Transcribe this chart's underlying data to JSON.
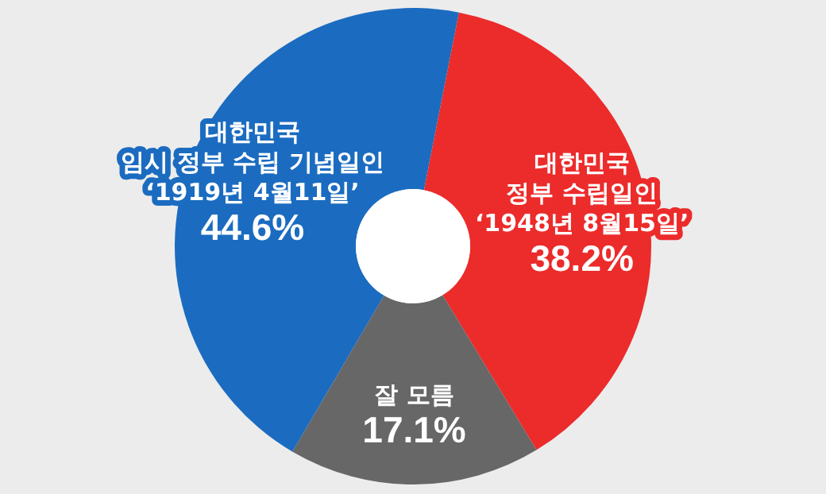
{
  "chart_data": {
    "type": "donut",
    "categories": [
      "대한민국\n임시 정부 수립 기념일인\n‘1919년 4월11일’",
      "대한민국\n정부 수립일인\n‘1948년 8월15일’",
      "잘 모름"
    ],
    "values": [
      44.6,
      38.2,
      17.1
    ],
    "colors": [
      "#1b6cc0",
      "#ec2b2b",
      "#676767"
    ],
    "value_labels": [
      "44.6%",
      "38.2%",
      "17.1%"
    ]
  }
}
